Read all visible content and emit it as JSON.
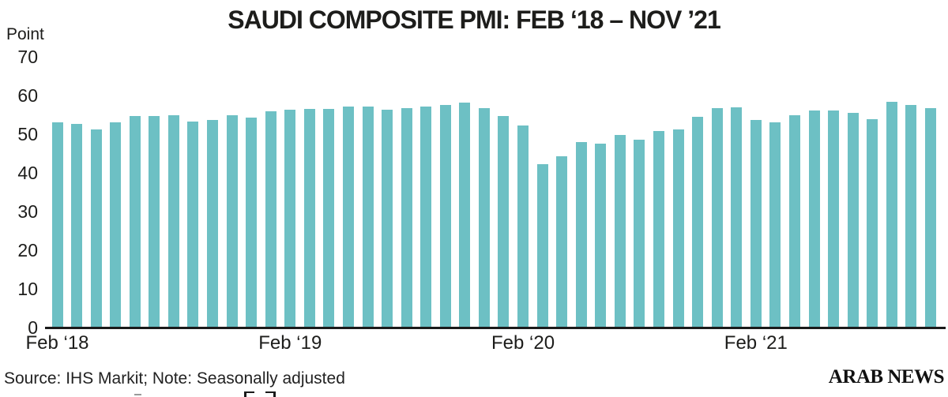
{
  "title": "SAUDI COMPOSITE PMI: FEB ‘18 – NOV ’21",
  "axis_unit_label": "Point",
  "source_note": "Source: IHS Markit; Note: Seasonally adjusted",
  "brand": "ARAB NEWS",
  "colors": {
    "bar": "#6dc0c4",
    "axis": "#1a1a1a",
    "text": "#1d1d1b"
  },
  "chart_data": {
    "type": "bar",
    "title": "SAUDI COMPOSITE PMI: FEB ‘18 – NOV ’21",
    "xlabel": "",
    "ylabel": "Point",
    "ylim": [
      0,
      70
    ],
    "yticks": [
      70,
      60,
      50,
      40,
      30,
      20,
      10,
      0
    ],
    "grid": false,
    "legend": false,
    "bar_color": "#6dc0c4",
    "categories": [
      "Feb 2018",
      "Mar 2018",
      "Apr 2018",
      "May 2018",
      "Jun 2018",
      "Jul 2018",
      "Aug 2018",
      "Sep 2018",
      "Oct 2018",
      "Nov 2018",
      "Dec 2018",
      "Jan 2019",
      "Feb 2019",
      "Mar 2019",
      "Apr 2019",
      "May 2019",
      "Jun 2019",
      "Jul 2019",
      "Aug 2019",
      "Sep 2019",
      "Oct 2019",
      "Nov 2019",
      "Dec 2019",
      "Jan 2020",
      "Feb 2020",
      "Mar 2020",
      "Apr 2020",
      "May 2020",
      "Jun 2020",
      "Jul 2020",
      "Aug 2020",
      "Sep 2020",
      "Oct 2020",
      "Nov 2020",
      "Dec 2020",
      "Jan 2021",
      "Feb 2021",
      "Mar 2021",
      "Apr 2021",
      "May 2021",
      "Jun 2021",
      "Jul 2021",
      "Aug 2021",
      "Sep 2021",
      "Oct 2021",
      "Nov 2021"
    ],
    "values": [
      53.2,
      52.8,
      51.4,
      53.2,
      55.0,
      54.9,
      55.1,
      53.4,
      53.8,
      55.2,
      54.5,
      56.2,
      56.6,
      56.8,
      56.8,
      57.3,
      57.4,
      56.6,
      57.0,
      57.3,
      57.8,
      58.3,
      56.9,
      54.9,
      52.5,
      42.4,
      44.4,
      48.1,
      47.7,
      50.0,
      48.8,
      51.0,
      51.5,
      54.7,
      57.0,
      57.1,
      53.9,
      53.3,
      55.2,
      56.4,
      56.4,
      55.8,
      54.1,
      58.6,
      57.7,
      56.9
    ],
    "xticks": [
      {
        "label": "Feb ‘18",
        "index": 0
      },
      {
        "label": "Feb ‘19",
        "index": 12
      },
      {
        "label": "Feb ‘20",
        "index": 24
      },
      {
        "label": "Feb ‘21",
        "index": 36
      }
    ]
  }
}
